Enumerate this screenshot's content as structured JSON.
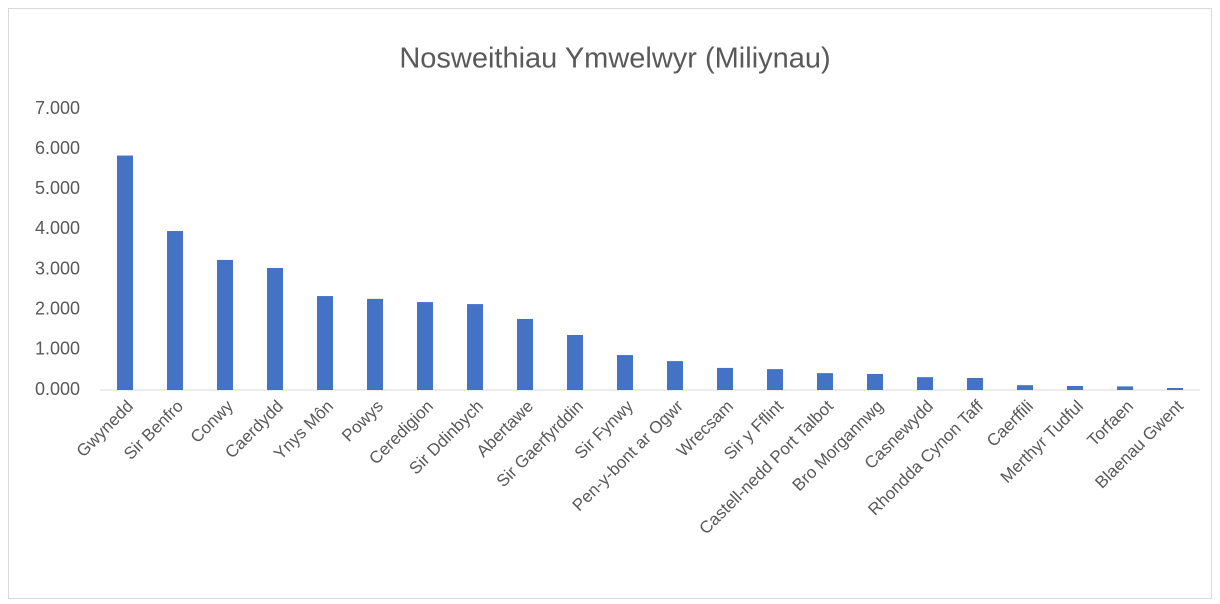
{
  "chart_data": {
    "type": "bar",
    "title": "Nosweithiau Ymwelwyr (Miliynau)",
    "categories": [
      "Gwynedd",
      "Sir Benfro",
      "Conwy",
      "Caerdydd",
      "Ynys Môn",
      "Powys",
      "Ceredigion",
      "Sir Ddinbych",
      "Abertawe",
      "Sir Gaerfyrddin",
      "Sir Fynwy",
      "Pen-y-bont ar Ogwr",
      "Wrecsam",
      "Sir y Fflint",
      "Castell-nedd Port Talbot",
      "Bro Morgannwg",
      "Casnewydd",
      "Rhondda Cynon Taff",
      "Caerffili",
      "Merthyr Tudful",
      "Torfaen",
      "Blaenau Gwent"
    ],
    "values": [
      5.84,
      3.96,
      3.24,
      3.04,
      2.34,
      2.27,
      2.19,
      2.14,
      1.77,
      1.37,
      0.87,
      0.72,
      0.55,
      0.52,
      0.42,
      0.4,
      0.32,
      0.3,
      0.12,
      0.1,
      0.09,
      0.05
    ],
    "color": "#4472c4",
    "ylim": [
      0,
      7
    ],
    "yticks": [
      {
        "value": 0,
        "label": "0.000"
      },
      {
        "value": 1,
        "label": "1.000"
      },
      {
        "value": 2,
        "label": "2.000"
      },
      {
        "value": 3,
        "label": "3.000"
      },
      {
        "value": 4,
        "label": "4.000"
      },
      {
        "value": 5,
        "label": "5.000"
      },
      {
        "value": 6,
        "label": "6.000"
      },
      {
        "value": 7,
        "label": "7.000"
      }
    ],
    "grid": false
  }
}
